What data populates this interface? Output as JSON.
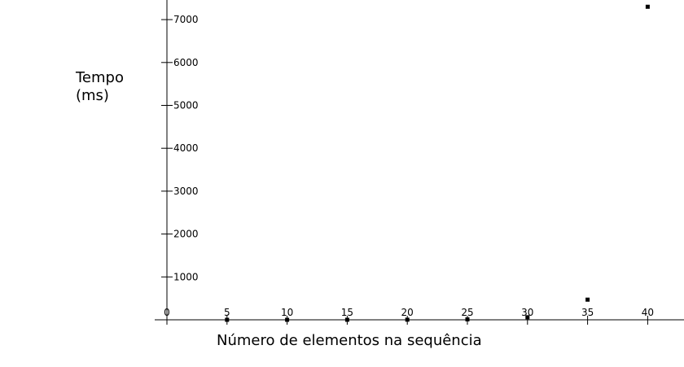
{
  "chart_data": {
    "type": "scatter",
    "title": "",
    "xlabel": "Número de elementos na sequência",
    "ylabel": "Tempo (ms)",
    "ylabel_lines": [
      "Tempo",
      "(ms)"
    ],
    "x_ticks": [
      0,
      5,
      10,
      15,
      20,
      25,
      30,
      35,
      40
    ],
    "y_ticks": [
      1000,
      2000,
      3000,
      4000,
      5000,
      6000,
      7000
    ],
    "xlim": [
      -1,
      43
    ],
    "ylim": [
      0,
      7450
    ],
    "grid": false,
    "legend": "none",
    "marker_color": "#000000",
    "series": [
      {
        "x": [
          5,
          10,
          15,
          20,
          25,
          30,
          35,
          40
        ],
        "y": [
          0,
          0,
          1,
          3,
          10,
          60,
          470,
          7300
        ]
      }
    ]
  }
}
